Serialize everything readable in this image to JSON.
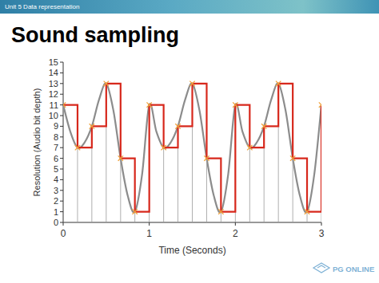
{
  "page": {
    "header": "Unit 5 Data representation",
    "logo": "PG ONLINE"
  },
  "chart_data": {
    "type": "line",
    "title": "Sound sampling",
    "x_label": "Time (Seconds)",
    "y_label": "Resolution (Audio bit depth)",
    "xlim": [
      0,
      3
    ],
    "xticks": [
      0,
      1,
      2,
      3
    ],
    "ylim": [
      0,
      15
    ],
    "yticks": [
      0,
      1,
      2,
      3,
      4,
      5,
      6,
      7,
      8,
      9,
      10,
      11,
      12,
      13,
      14,
      15
    ],
    "grid": false,
    "series": [
      {
        "type": "line",
        "color": "#8c8c8c",
        "x": [
          0,
          0.083,
          0.167,
          0.25,
          0.333,
          0.417,
          0.5,
          0.583,
          0.667,
          0.75,
          0.833,
          0.917,
          1,
          1.083,
          1.167,
          1.25,
          1.333,
          1.417,
          1.5,
          1.583,
          1.667,
          1.75,
          1.833,
          1.917,
          2,
          2.083,
          2.167,
          2.25,
          2.333,
          2.417,
          2.5,
          2.583,
          2.667,
          2.75,
          2.833,
          2.917,
          3
        ],
        "values": [
          11,
          8.5,
          7,
          7.5,
          9,
          11.5,
          13,
          10.5,
          6,
          2.5,
          1,
          4.5,
          11,
          8.5,
          7,
          7.5,
          9,
          11.5,
          13,
          10.5,
          6,
          2.5,
          1,
          4.5,
          11,
          8.5,
          7,
          7.5,
          9,
          11.5,
          13,
          10.5,
          6,
          2.5,
          1,
          4.5,
          11
        ]
      },
      {
        "type": "step",
        "color": "#d7281c",
        "marker": "x",
        "x": [
          0,
          0.167,
          0.333,
          0.5,
          0.667,
          0.833,
          1,
          1.167,
          1.333,
          1.5,
          1.667,
          1.833,
          2,
          2.167,
          2.333,
          2.5,
          2.667,
          2.833,
          3
        ],
        "values": [
          11,
          7,
          9,
          13,
          6,
          1,
          11,
          7,
          9,
          13,
          6,
          1,
          11,
          7,
          9,
          13,
          6,
          1,
          11
        ]
      }
    ]
  }
}
